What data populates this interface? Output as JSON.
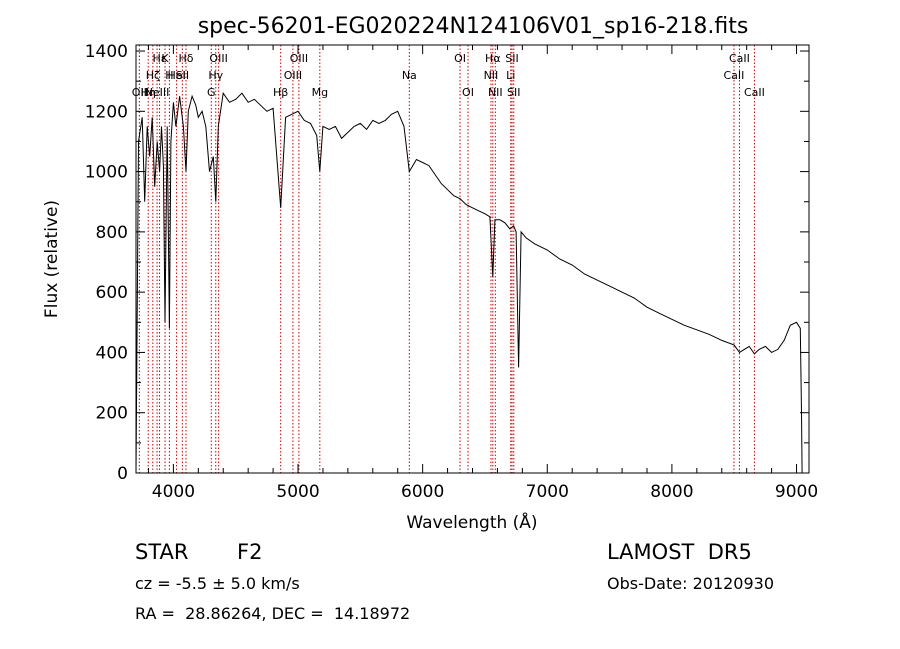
{
  "chart_data": {
    "type": "line",
    "title": "spec-56201-EG020224N124106V01_sp16-218.fits",
    "xlabel": "Wavelength (Å)",
    "ylabel": "Flux (relative)",
    "xlim": [
      3700,
      9100
    ],
    "ylim": [
      0,
      1420
    ],
    "x_ticks": [
      4000,
      5000,
      6000,
      7000,
      8000,
      9000
    ],
    "y_ticks": [
      0,
      200,
      400,
      600,
      800,
      1000,
      1200,
      1400
    ],
    "grid": false,
    "series": [
      {
        "x": [
          3700,
          3720,
          3750,
          3770,
          3790,
          3810,
          3830,
          3850,
          3870,
          3889,
          3905,
          3920,
          3933,
          3950,
          3968,
          3980,
          4000,
          4020,
          4050,
          4080,
          4101,
          4120,
          4150,
          4180,
          4200,
          4230,
          4260,
          4290,
          4320,
          4340,
          4360,
          4400,
          4450,
          4500,
          4550,
          4600,
          4650,
          4700,
          4750,
          4800,
          4861,
          4900,
          4950,
          5000,
          5050,
          5100,
          5150,
          5175,
          5200,
          5250,
          5300,
          5350,
          5400,
          5450,
          5500,
          5550,
          5600,
          5650,
          5700,
          5750,
          5800,
          5850,
          5893,
          5950,
          6000,
          6050,
          6100,
          6150,
          6200,
          6250,
          6300,
          6350,
          6400,
          6450,
          6500,
          6540,
          6563,
          6580,
          6620,
          6660,
          6700,
          6730,
          6750,
          6770,
          6790,
          6830,
          6900,
          7000,
          7100,
          7200,
          7300,
          7400,
          7500,
          7600,
          7700,
          7800,
          7900,
          8000,
          8100,
          8200,
          8300,
          8400,
          8498,
          8542,
          8580,
          8620,
          8662,
          8700,
          8750,
          8800,
          8850,
          8900,
          8950,
          9000,
          9030,
          9040,
          9045
        ],
        "values": [
          0,
          1100,
          1180,
          900,
          1150,
          1050,
          1180,
          950,
          1100,
          1000,
          1150,
          1020,
          500,
          1150,
          480,
          1100,
          1230,
          1150,
          1250,
          1150,
          1000,
          1200,
          1250,
          1220,
          1180,
          1200,
          1150,
          1000,
          1050,
          900,
          1150,
          1260,
          1230,
          1240,
          1260,
          1230,
          1240,
          1220,
          1200,
          1210,
          880,
          1180,
          1190,
          1200,
          1170,
          1160,
          1120,
          1000,
          1150,
          1140,
          1150,
          1110,
          1130,
          1150,
          1160,
          1140,
          1170,
          1160,
          1170,
          1190,
          1200,
          1150,
          1000,
          1040,
          1030,
          1020,
          990,
          960,
          940,
          920,
          910,
          890,
          880,
          870,
          860,
          850,
          650,
          840,
          840,
          830,
          810,
          820,
          800,
          350,
          800,
          780,
          760,
          740,
          710,
          690,
          660,
          640,
          620,
          600,
          580,
          550,
          530,
          510,
          490,
          475,
          460,
          440,
          425,
          400,
          410,
          420,
          395,
          410,
          420,
          400,
          410,
          440,
          490,
          500,
          480,
          200,
          0
        ]
      }
    ],
    "line_labels": [
      {
        "wave": 3727,
        "name": "OII",
        "row": 3
      },
      {
        "wave": 3798,
        "name": "Hη",
        "row": 3
      },
      {
        "wave": 3835,
        "name": "Hζ",
        "row": 2
      },
      {
        "wave": 3869,
        "name": "NeIII",
        "row": 3
      },
      {
        "wave": 3889,
        "name": "Hε",
        "row": 1
      },
      {
        "wave": 3933,
        "name": "K",
        "row": 1
      },
      {
        "wave": 3968,
        "name": "H",
        "row": 2
      },
      {
        "wave": 4026,
        "name": "HeI",
        "row": 2
      },
      {
        "wave": 4072,
        "name": "SII",
        "row": 2
      },
      {
        "wave": 4101,
        "name": "Hδ",
        "row": 1
      },
      {
        "wave": 4304,
        "name": "G",
        "row": 3
      },
      {
        "wave": 4340,
        "name": "Hγ",
        "row": 2
      },
      {
        "wave": 4363,
        "name": "OIII",
        "row": 1
      },
      {
        "wave": 4861,
        "name": "Hβ",
        "row": 3
      },
      {
        "wave": 4959,
        "name": "OIII",
        "row": 2
      },
      {
        "wave": 5007,
        "name": "OIII",
        "row": 1
      },
      {
        "wave": 5175,
        "name": "Mg",
        "row": 3
      },
      {
        "wave": 5893,
        "name": "Na",
        "row": 2
      },
      {
        "wave": 6300,
        "name": "OI",
        "row": 1
      },
      {
        "wave": 6364,
        "name": "OI",
        "row": 3
      },
      {
        "wave": 6548,
        "name": "NII",
        "row": 2
      },
      {
        "wave": 6563,
        "name": "Hα",
        "row": 1
      },
      {
        "wave": 6583,
        "name": "NII",
        "row": 3
      },
      {
        "wave": 6707,
        "name": "Li",
        "row": 2
      },
      {
        "wave": 6717,
        "name": "SII",
        "row": 1
      },
      {
        "wave": 6731,
        "name": "SII",
        "row": 3
      },
      {
        "wave": 8498,
        "name": "CaII",
        "row": 2
      },
      {
        "wave": 8542,
        "name": "CaII",
        "row": 1
      },
      {
        "wave": 8662,
        "name": "CaII",
        "row": 3
      }
    ],
    "colors": {
      "spectrum": "#000000",
      "line_markers": "#cc0000",
      "text": "#000000"
    }
  },
  "info": {
    "object_class": "STAR",
    "subclass": "F2",
    "survey": "LAMOST  DR5",
    "redshift": "cz = -5.5 ± 5.0 km/s",
    "obs_date": "Obs-Date: 20120930",
    "coords": "RA =  28.86264, DEC =  14.18972"
  }
}
